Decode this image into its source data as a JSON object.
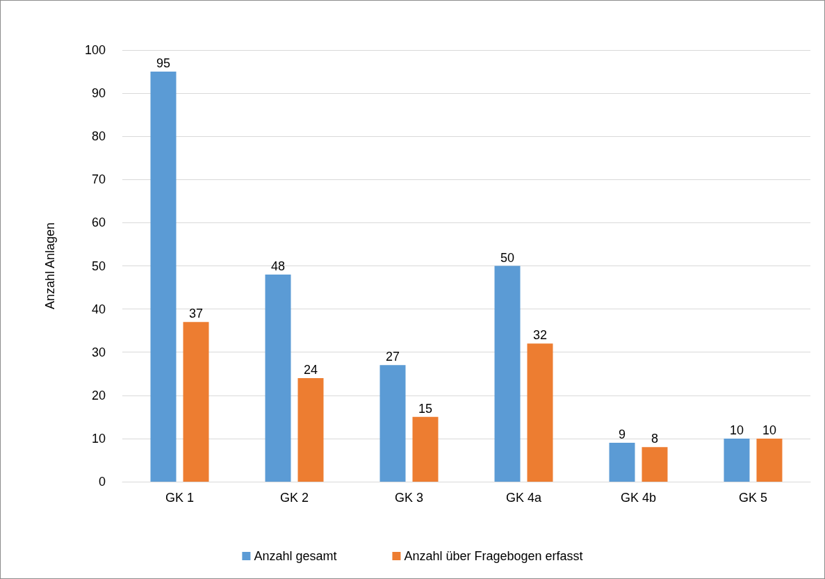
{
  "chart_data": {
    "type": "bar",
    "ylabel": "Anzahl Anlagen",
    "categories": [
      "GK 1",
      "GK 2",
      "GK 3",
      "GK 4a",
      "GK 4b",
      "GK 5"
    ],
    "series": [
      {
        "name": "Anzahl gesamt",
        "color": "#5b9bd5",
        "values": [
          95,
          48,
          27,
          50,
          9,
          10
        ]
      },
      {
        "name": "Anzahl über Fragebogen erfasst",
        "color": "#ed7d31",
        "values": [
          37,
          24,
          15,
          32,
          8,
          10
        ]
      }
    ],
    "ylim": [
      0,
      100
    ],
    "yticks": [
      0,
      10,
      20,
      30,
      40,
      50,
      60,
      70,
      80,
      90,
      100
    ],
    "grid": "y",
    "legend": "bottom",
    "data_labels": true
  }
}
